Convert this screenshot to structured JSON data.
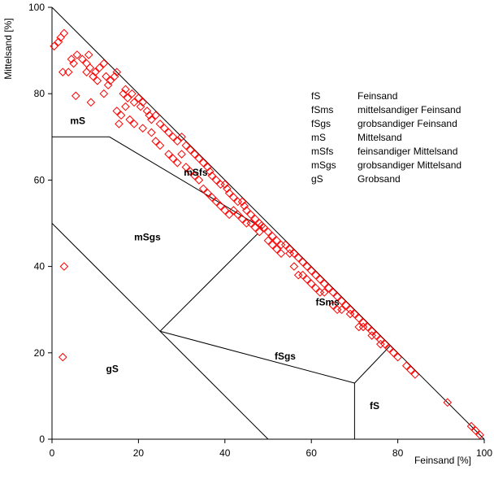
{
  "chart_data": {
    "type": "scatter",
    "title": "",
    "xlabel": "Feinsand [%]",
    "ylabel": "Mittelsand [%]",
    "xlim": [
      0,
      100
    ],
    "ylim": [
      0,
      100
    ],
    "xticks": [
      0,
      20,
      40,
      60,
      80,
      100
    ],
    "yticks": [
      0,
      20,
      40,
      60,
      80,
      100
    ],
    "grid": false,
    "marker": "diamond-open",
    "marker_color": "#ff0000",
    "region_lines": [
      [
        [
          0,
          70
        ],
        [
          13.3,
          70
        ],
        [
          48.8,
          48.8
        ]
      ],
      [
        [
          0,
          50
        ],
        [
          50,
          0
        ]
      ],
      [
        [
          25,
          25
        ],
        [
          47.6,
          47.6
        ]
      ],
      [
        [
          70,
          13
        ],
        [
          70,
          0
        ]
      ],
      [
        [
          70,
          13
        ],
        [
          78.3,
          21.7
        ]
      ],
      [
        [
          25,
          25
        ],
        [
          70,
          13
        ]
      ]
    ],
    "region_labels": [
      {
        "text": "mS",
        "x": 4.2,
        "y": 73
      },
      {
        "text": "mSfs",
        "x": 30.5,
        "y": 61
      },
      {
        "text": "mSgs",
        "x": 19,
        "y": 46
      },
      {
        "text": "fSms",
        "x": 61,
        "y": 31
      },
      {
        "text": "fSgs",
        "x": 51.5,
        "y": 18.5
      },
      {
        "text": "gS",
        "x": 12.5,
        "y": 15.5
      },
      {
        "text": "fS",
        "x": 73.5,
        "y": 7
      }
    ],
    "legend": {
      "position": "top-right",
      "entries": [
        {
          "code": "fS",
          "name": "Feinsand"
        },
        {
          "code": "fSms",
          "name": "mittelsandiger Feinsand"
        },
        {
          "code": "fSgs",
          "name": "grobsandiger Feinsand"
        },
        {
          "code": "mS",
          "name": "Mittelsand"
        },
        {
          "code": "mSfs",
          "name": "feinsandiger Mittelsand"
        },
        {
          "code": "mSgs",
          "name": "grobsandiger Mittelsand"
        },
        {
          "code": "gS",
          "name": "Grobsand"
        }
      ]
    },
    "points": [
      [
        0.5,
        91
      ],
      [
        1.5,
        92
      ],
      [
        2,
        93
      ],
      [
        2.8,
        94
      ],
      [
        2.5,
        85
      ],
      [
        3.8,
        85
      ],
      [
        4.5,
        88
      ],
      [
        5,
        87
      ],
      [
        5.8,
        89
      ],
      [
        7,
        88
      ],
      [
        8,
        87
      ],
      [
        8.5,
        89
      ],
      [
        8,
        85
      ],
      [
        8.8,
        86
      ],
      [
        9.5,
        84
      ],
      [
        10,
        85
      ],
      [
        10.5,
        83
      ],
      [
        12,
        87
      ],
      [
        12.5,
        84
      ],
      [
        13,
        82
      ],
      [
        13.5,
        83
      ],
      [
        14.5,
        84
      ],
      [
        15,
        85
      ],
      [
        16.5,
        80
      ],
      [
        17,
        81
      ],
      [
        17.5,
        79
      ],
      [
        18.5,
        80
      ],
      [
        19,
        78
      ],
      [
        20,
        79
      ],
      [
        20.5,
        77
      ],
      [
        21,
        78
      ],
      [
        22,
        76
      ],
      [
        22.5,
        75
      ],
      [
        23,
        74
      ],
      [
        24,
        75
      ],
      [
        25,
        73
      ],
      [
        26,
        72
      ],
      [
        27,
        71
      ],
      [
        28,
        70
      ],
      [
        29,
        69
      ],
      [
        30,
        70
      ],
      [
        31,
        68
      ],
      [
        32,
        67
      ],
      [
        33,
        66
      ],
      [
        34,
        65
      ],
      [
        35,
        64
      ],
      [
        36,
        63
      ],
      [
        36.5,
        62
      ],
      [
        37,
        61
      ],
      [
        38,
        60
      ],
      [
        39,
        59
      ],
      [
        40,
        59
      ],
      [
        40.5,
        58
      ],
      [
        41,
        57
      ],
      [
        42,
        56
      ],
      [
        43,
        55
      ],
      [
        44,
        55
      ],
      [
        44.5,
        54
      ],
      [
        45,
        53
      ],
      [
        46,
        52
      ],
      [
        47,
        51
      ],
      [
        48,
        50
      ],
      [
        48.5,
        49.5
      ],
      [
        49,
        49
      ],
      [
        50,
        48
      ],
      [
        51,
        47
      ],
      [
        52,
        46
      ],
      [
        53,
        45
      ],
      [
        54,
        45
      ],
      [
        55,
        44
      ],
      [
        56,
        43
      ],
      [
        57,
        42
      ],
      [
        58,
        41
      ],
      [
        59,
        40
      ],
      [
        60,
        39
      ],
      [
        61,
        38
      ],
      [
        62,
        37
      ],
      [
        63,
        36
      ],
      [
        64,
        35
      ],
      [
        65,
        34
      ],
      [
        66,
        33
      ],
      [
        67,
        32
      ],
      [
        68,
        31
      ],
      [
        69,
        30
      ],
      [
        70,
        29
      ],
      [
        71,
        28
      ],
      [
        72,
        27
      ],
      [
        73,
        26
      ],
      [
        74,
        25
      ],
      [
        75,
        24
      ],
      [
        76,
        23
      ],
      [
        77,
        22
      ],
      [
        78,
        21
      ],
      [
        79,
        20
      ],
      [
        80,
        19
      ],
      [
        82,
        17
      ],
      [
        83,
        16
      ],
      [
        84,
        15
      ],
      [
        91.5,
        8.5
      ],
      [
        97,
        3
      ],
      [
        98,
        2
      ],
      [
        99,
        1
      ],
      [
        5.5,
        79.5
      ],
      [
        9,
        78
      ],
      [
        11,
        86
      ],
      [
        12,
        80
      ],
      [
        15,
        76
      ],
      [
        15.5,
        73
      ],
      [
        16,
        75
      ],
      [
        17,
        77
      ],
      [
        18,
        74
      ],
      [
        19,
        73
      ],
      [
        21,
        72
      ],
      [
        23,
        71
      ],
      [
        24,
        69
      ],
      [
        25,
        68
      ],
      [
        27,
        66
      ],
      [
        28,
        65
      ],
      [
        29,
        64
      ],
      [
        30,
        66
      ],
      [
        31,
        63
      ],
      [
        32,
        62
      ],
      [
        33,
        61
      ],
      [
        34,
        60
      ],
      [
        35,
        58
      ],
      [
        36,
        57
      ],
      [
        37,
        56
      ],
      [
        38,
        55
      ],
      [
        39,
        54
      ],
      [
        40,
        53
      ],
      [
        41,
        52
      ],
      [
        42,
        53
      ],
      [
        43,
        52
      ],
      [
        44,
        51
      ],
      [
        45,
        50
      ],
      [
        46,
        50
      ],
      [
        47,
        49
      ],
      [
        48,
        48
      ],
      [
        50,
        46
      ],
      [
        51,
        45
      ],
      [
        52,
        44
      ],
      [
        53,
        43
      ],
      [
        55,
        43
      ],
      [
        56,
        40
      ],
      [
        57,
        38
      ],
      [
        58,
        38
      ],
      [
        59,
        37
      ],
      [
        60,
        36
      ],
      [
        61,
        35
      ],
      [
        62,
        34
      ],
      [
        63,
        34
      ],
      [
        65,
        31
      ],
      [
        66,
        30
      ],
      [
        67,
        30
      ],
      [
        69,
        29
      ],
      [
        71,
        26
      ],
      [
        72,
        26
      ],
      [
        74,
        24
      ],
      [
        76,
        22
      ],
      [
        2.8,
        40
      ],
      [
        2.5,
        19
      ]
    ]
  }
}
